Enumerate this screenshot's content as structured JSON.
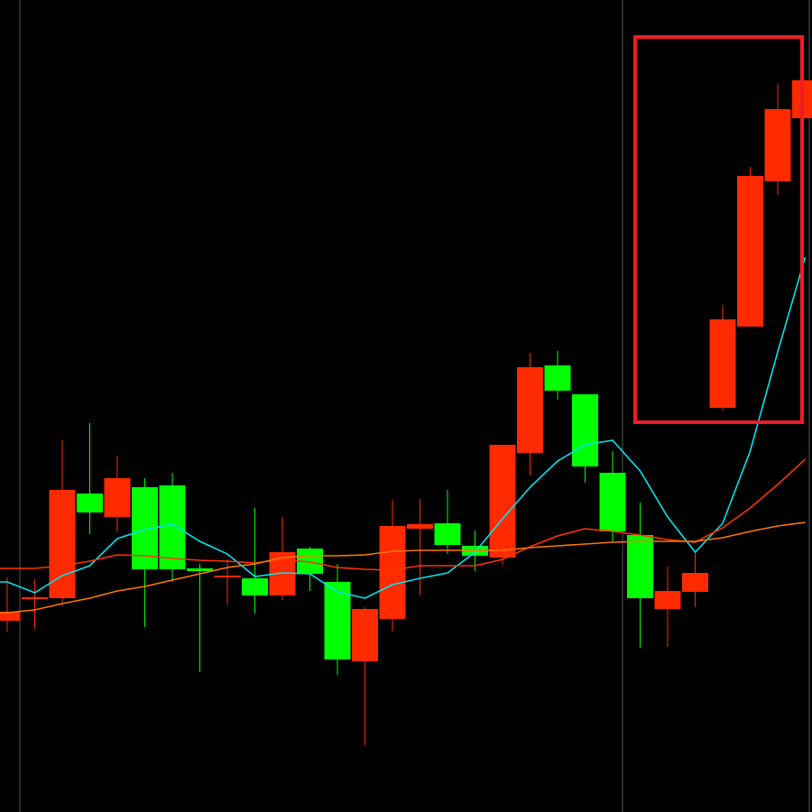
{
  "chart_data": {
    "type": "candlestick",
    "title": "",
    "xlabel": "",
    "ylabel": "",
    "ylim": [
      0,
      900
    ],
    "grid": false,
    "colors": {
      "up": "#ff2a00",
      "down": "#00ff00",
      "ma_short": "#00e5ee",
      "ma_mid": "#ff3300",
      "ma_long": "#ff7700",
      "highlight_box": "#ee1c25",
      "separator": "#555555"
    },
    "candles": [
      {
        "o": 212,
        "c": 222,
        "h": 260,
        "l": 200
      },
      {
        "o": 236,
        "c": 238,
        "h": 258,
        "l": 203
      },
      {
        "o": 237,
        "c": 357,
        "h": 412,
        "l": 228
      },
      {
        "o": 353,
        "c": 332,
        "h": 431,
        "l": 308
      },
      {
        "o": 327,
        "c": 370,
        "h": 395,
        "l": 310
      },
      {
        "o": 360,
        "c": 269,
        "h": 370,
        "l": 205
      },
      {
        "o": 362,
        "c": 269,
        "h": 376,
        "l": 255
      },
      {
        "o": 270,
        "c": 267,
        "h": 275,
        "l": 155
      },
      {
        "o": 260,
        "c": 262,
        "h": 280,
        "l": 230
      },
      {
        "o": 259,
        "c": 240,
        "h": 337,
        "l": 220
      },
      {
        "o": 240,
        "c": 288,
        "h": 327,
        "l": 235
      },
      {
        "o": 292,
        "c": 264,
        "h": 294,
        "l": 245
      },
      {
        "o": 255,
        "c": 169,
        "h": 275,
        "l": 152
      },
      {
        "o": 167,
        "c": 225,
        "h": 227,
        "l": 74
      },
      {
        "o": 214,
        "c": 317,
        "h": 346,
        "l": 200
      },
      {
        "o": 314,
        "c": 319,
        "h": 347,
        "l": 240
      },
      {
        "o": 320,
        "c": 296,
        "h": 357,
        "l": 286
      },
      {
        "o": 295,
        "c": 284,
        "h": 312,
        "l": 267
      },
      {
        "o": 282,
        "c": 407,
        "h": 407,
        "l": 274
      },
      {
        "o": 398,
        "c": 493,
        "h": 509,
        "l": 373
      },
      {
        "o": 495,
        "c": 467,
        "h": 511,
        "l": 457
      },
      {
        "o": 463,
        "c": 383,
        "h": 463,
        "l": 365
      },
      {
        "o": 376,
        "c": 311,
        "h": 400,
        "l": 300
      },
      {
        "o": 307,
        "c": 237,
        "h": 343,
        "l": 182
      },
      {
        "o": 225,
        "c": 245,
        "h": 272,
        "l": 183
      },
      {
        "o": 244,
        "c": 265,
        "h": 288,
        "l": 227
      },
      {
        "o": 448,
        "c": 546,
        "h": 562,
        "l": 445
      },
      {
        "o": 538,
        "c": 705,
        "h": 715,
        "l": 538
      },
      {
        "o": 699,
        "c": 779,
        "h": 807,
        "l": 684
      },
      {
        "o": 769,
        "c": 811,
        "h": 811,
        "l": 769
      }
    ],
    "ma_short": [
      255,
      243,
      262,
      273,
      303,
      313,
      319,
      300,
      286,
      261,
      265,
      264,
      244,
      237,
      252,
      259,
      265,
      288,
      325,
      360,
      389,
      407,
      412,
      378,
      327,
      288,
      320,
      400,
      510,
      615
    ],
    "ma_mid": [
      270,
      270,
      273,
      278,
      285,
      284,
      281,
      279,
      278,
      276,
      280,
      277,
      271,
      269,
      268,
      273,
      273,
      273,
      280,
      294,
      306,
      314,
      311,
      307,
      302,
      299,
      315,
      337,
      363,
      391
    ],
    "ma_long": [
      221,
      224,
      231,
      237,
      245,
      250,
      257,
      264,
      271,
      275,
      282,
      284,
      284,
      285,
      289,
      290,
      290,
      290,
      290,
      293,
      295,
      297,
      299,
      300,
      300,
      300,
      304,
      311,
      317,
      321
    ],
    "highlight": {
      "from_index": 26,
      "to_index": 29
    }
  }
}
